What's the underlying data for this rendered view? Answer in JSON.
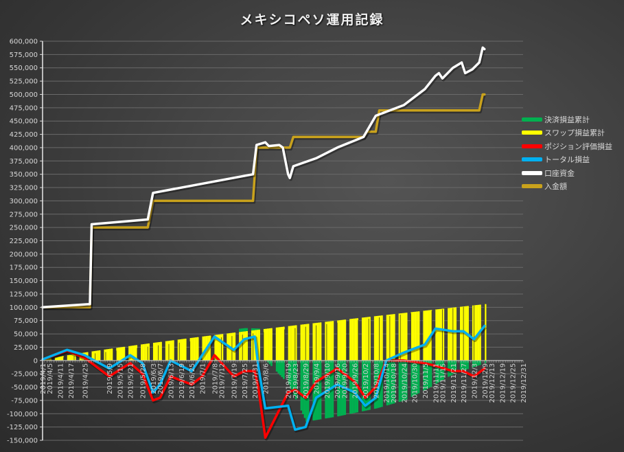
{
  "chart_data": {
    "type": "line+bar",
    "title": "メキシコペソ運用記録",
    "xlabel": "",
    "ylabel": "",
    "ylim": [
      -150000,
      600000
    ],
    "yticks": [
      600000,
      575000,
      550000,
      525000,
      500000,
      475000,
      450000,
      425000,
      400000,
      375000,
      350000,
      325000,
      300000,
      275000,
      250000,
      225000,
      200000,
      175000,
      150000,
      125000,
      100000,
      75000,
      50000,
      25000,
      0,
      -25000,
      -50000,
      -75000,
      -100000,
      -125000,
      -150000
    ],
    "ytick_labels": [
      "600,000",
      "575,000",
      "550,000",
      "525,000",
      "500,000",
      "475,000",
      "450,000",
      "425,000",
      "400,000",
      "375,000",
      "350,000",
      "325,000",
      "300,000",
      "275,000",
      "250,000",
      "225,000",
      "200,000",
      "175,000",
      "150,000",
      "125,000",
      "100,000",
      "75,000",
      "50,000",
      "25,000",
      "0",
      "-25,000",
      "-50,000",
      "-75,000",
      "-100,000",
      "-125,000",
      "-150,000"
    ],
    "xtick_labels": [
      "2019/4/1",
      "2019/4/5",
      "2019/4/11",
      "2019/4/17",
      "2019/4/25",
      "2019/5/9",
      "2019/5/15",
      "2019/5/21",
      "2019/5/28",
      "2019/6/3",
      "2019/6/7",
      "2019/6/13",
      "2019/6/19",
      "2019/6/25",
      "2019/7/1",
      "2019/7/8",
      "2019/7/12",
      "2019/7/19",
      "2019/7/25",
      "2019/7/31",
      "2019/8/6",
      "2019/8/19",
      "2019/8/23",
      "2019/8/29",
      "2019/9/4",
      "2019/9/10",
      "2019/9/16",
      "2019/9/20",
      "2019/9/26",
      "2019/10/2",
      "2019/10/8",
      "2019/10/14",
      "2019/10/18",
      "2019/10/24",
      "2019/10/30",
      "2019/11/5",
      "2019/11/11",
      "2019/11/15",
      "2019/11/21",
      "2019/11/27",
      "2019/12/3",
      "2019/12/9",
      "2019/12/13",
      "2019/12/19",
      "2019/12/25",
      "2019/12/31"
    ],
    "grid": true,
    "legend_position": "right",
    "legend": [
      {
        "name": "決済損益累計",
        "color": "#00b050",
        "kind": "bar"
      },
      {
        "name": "スワップ損益累計",
        "color": "#ffff00",
        "kind": "bar"
      },
      {
        "name": "ポジション評価損益",
        "color": "#ff0000",
        "kind": "line"
      },
      {
        "name": "トータル損益",
        "color": "#00b0f0",
        "kind": "line"
      },
      {
        "name": "口座資金",
        "color": "#ffffff",
        "kind": "line"
      },
      {
        "name": "入金額",
        "color": "#c9a21c",
        "kind": "line"
      }
    ],
    "series": [
      {
        "name": "入金額",
        "x": [
          "2019/4/1",
          "2019/4/28",
          "2019/4/29",
          "2019/5/31",
          "2019/6/3",
          "2019/7/30",
          "2019/8/1",
          "2019/8/20",
          "2019/8/22",
          "2019/10/1",
          "2019/10/3",
          "2019/10/8",
          "2019/10/10",
          "2019/12/6",
          "2019/12/8",
          "2019/12/9"
        ],
        "values": [
          100000,
          100000,
          250000,
          250000,
          300000,
          300000,
          400000,
          400000,
          420000,
          420000,
          430000,
          430000,
          470000,
          470000,
          500000,
          500000
        ]
      },
      {
        "name": "口座資金",
        "x": [
          "2019/4/1",
          "2019/4/28",
          "2019/4/29",
          "2019/5/31",
          "2019/6/3",
          "2019/7/30",
          "2019/8/1",
          "2019/8/6",
          "2019/8/8",
          "2019/8/14",
          "2019/8/16",
          "2019/8/19",
          "2019/8/20",
          "2019/8/22",
          "2019/9/4",
          "2019/9/16",
          "2019/10/1",
          "2019/10/8",
          "2019/10/24",
          "2019/11/5",
          "2019/11/11",
          "2019/11/13",
          "2019/11/15",
          "2019/11/21",
          "2019/11/26",
          "2019/11/28",
          "2019/12/2",
          "2019/12/6",
          "2019/12/8",
          "2019/12/9"
        ],
        "values": [
          100000,
          106000,
          256000,
          265000,
          315000,
          350000,
          405000,
          410000,
          403000,
          405000,
          400000,
          350000,
          343000,
          365000,
          380000,
          400000,
          420000,
          460000,
          480000,
          510000,
          535000,
          540000,
          530000,
          550000,
          560000,
          540000,
          547000,
          560000,
          588000,
          585000
        ]
      },
      {
        "name": "トータル損益",
        "x": [
          "2019/4/1",
          "2019/4/15",
          "2019/4/25",
          "2019/5/9",
          "2019/5/21",
          "2019/5/28",
          "2019/6/3",
          "2019/6/7",
          "2019/6/13",
          "2019/6/25",
          "2019/7/1",
          "2019/7/8",
          "2019/7/19",
          "2019/7/25",
          "2019/7/31",
          "2019/8/2",
          "2019/8/6",
          "2019/8/19",
          "2019/8/23",
          "2019/8/29",
          "2019/9/4",
          "2019/9/16",
          "2019/9/26",
          "2019/10/2",
          "2019/10/8",
          "2019/10/14",
          "2019/10/24",
          "2019/11/5",
          "2019/11/11",
          "2019/11/21",
          "2019/11/27",
          "2019/12/3",
          "2019/12/9"
        ],
        "values": [
          2000,
          20000,
          10000,
          -15000,
          10000,
          -5000,
          -60000,
          -45000,
          0,
          -20000,
          10000,
          45000,
          20000,
          40000,
          45000,
          -10000,
          -90000,
          -85000,
          -130000,
          -125000,
          -70000,
          -45000,
          -60000,
          -85000,
          -70000,
          0,
          15000,
          30000,
          60000,
          55000,
          55000,
          40000,
          65000
        ]
      },
      {
        "name": "ポジション評価損益",
        "x": [
          "2019/4/1",
          "2019/4/15",
          "2019/4/25",
          "2019/5/9",
          "2019/5/21",
          "2019/5/28",
          "2019/6/3",
          "2019/6/7",
          "2019/6/13",
          "2019/6/25",
          "2019/7/1",
          "2019/7/8",
          "2019/7/19",
          "2019/7/25",
          "2019/7/31",
          "2019/8/2",
          "2019/8/6",
          "2019/8/19",
          "2019/8/23",
          "2019/8/29",
          "2019/9/4",
          "2019/9/16",
          "2019/9/26",
          "2019/10/2",
          "2019/10/8",
          "2019/10/14",
          "2019/10/24",
          "2019/11/5",
          "2019/11/11",
          "2019/11/21",
          "2019/11/27",
          "2019/12/3",
          "2019/12/9"
        ],
        "values": [
          2000,
          18000,
          5000,
          -30000,
          -5000,
          -25000,
          -75000,
          -70000,
          -30000,
          -45000,
          -30000,
          10000,
          -30000,
          -20000,
          -20000,
          -50000,
          -145000,
          -60000,
          -55000,
          -70000,
          -40000,
          -15000,
          -40000,
          -70000,
          -50000,
          0,
          0,
          -5000,
          -10000,
          -20000,
          -20000,
          -30000,
          -15000
        ]
      },
      {
        "name": "スワップ損益累計",
        "x_range": [
          "2019/4/1",
          "2019/12/9"
        ],
        "values_start_end": [
          1000,
          106000
        ]
      },
      {
        "name": "決済損益累計",
        "x_range": [
          "2019/7/22",
          "2019/12/9"
        ],
        "notes": "positive ~+7,000 late July; negative after 8/6 from about -110,000 rising toward 0 by mid-Nov",
        "values_samples": {
          "2019/7/25": 6000,
          "2019/8/6": 0,
          "2019/8/19": -45000,
          "2019/8/29": -115000,
          "2019/9/16": -105000,
          "2019/10/8": -90000,
          "2019/10/24": -75000,
          "2019/11/5": -55000,
          "2019/11/21": -25000,
          "2019/12/9": -5000
        }
      }
    ]
  },
  "legend_items": [
    "決済損益累計",
    "スワップ損益累計",
    "ポジション評価損益",
    "トータル損益",
    "口座資金",
    "入金額"
  ]
}
